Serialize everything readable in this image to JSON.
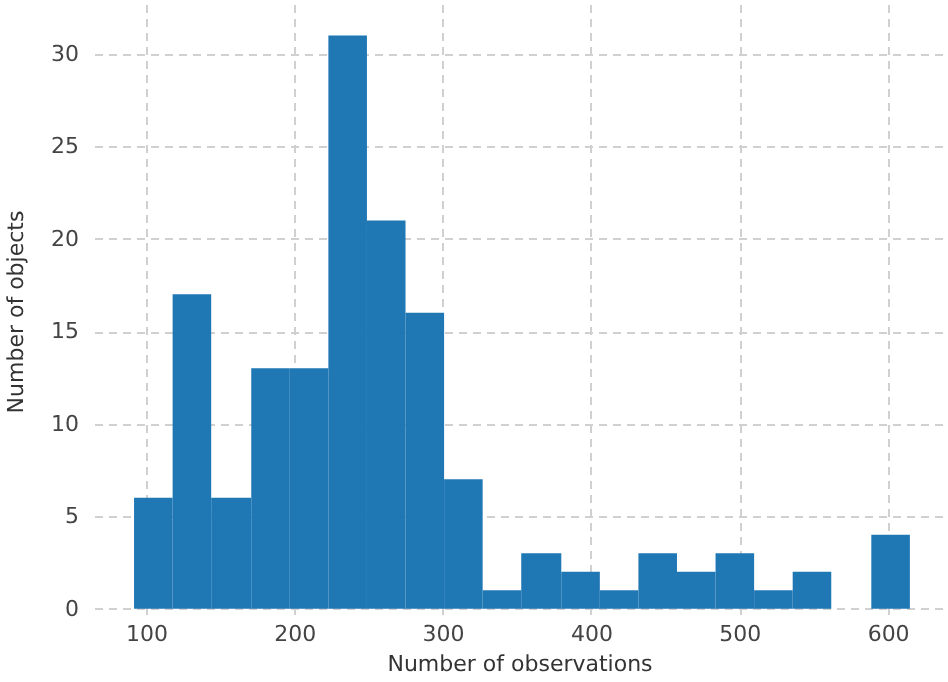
{
  "chart_data": {
    "type": "histogram",
    "xlabel": "Number of observations",
    "ylabel": "Number of objects",
    "bins": [
      92,
      118,
      144,
      171,
      197,
      223,
      249,
      275,
      301,
      327,
      353,
      380,
      406,
      432,
      458,
      484,
      510,
      536,
      562,
      589,
      615
    ],
    "values": [
      6,
      17,
      6,
      13,
      13,
      31,
      21,
      16,
      7,
      1,
      3,
      2,
      1,
      3,
      2,
      3,
      1,
      2,
      0,
      4
    ],
    "color": "#1f77b4",
    "xlim": [
      65,
      638
    ],
    "xticks": [
      100,
      200,
      300,
      400,
      500,
      600
    ],
    "ylim": [
      -0.5,
      32.7
    ],
    "yticks": [
      0,
      5,
      10,
      15,
      20,
      25,
      30
    ],
    "grid": true
  }
}
